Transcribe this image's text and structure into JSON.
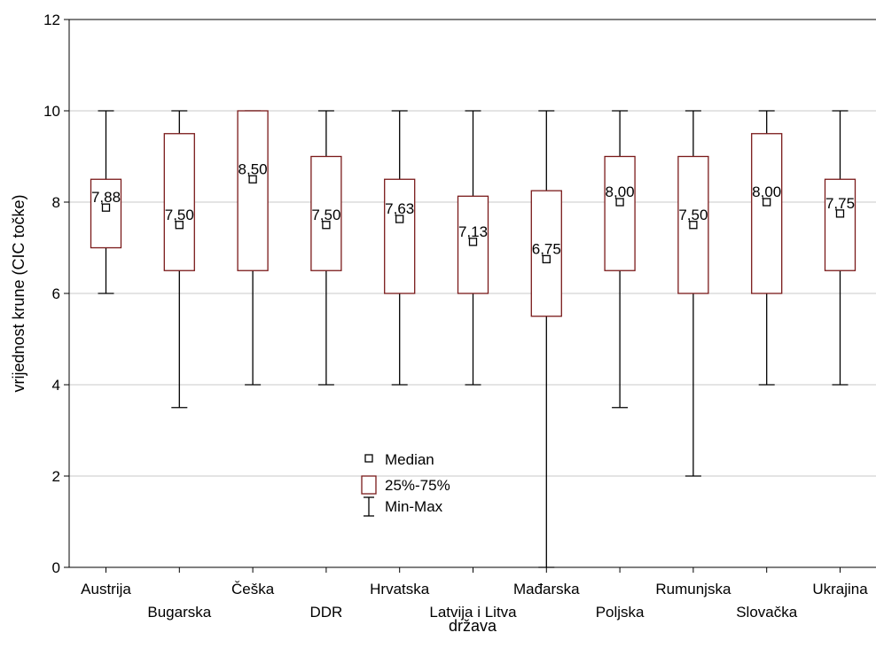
{
  "chart_data": {
    "type": "boxplot",
    "xlabel": "država",
    "ylabel": "vrijednost krune (CIC točke)",
    "ylim": [
      0,
      12
    ],
    "yticks": [
      0,
      2,
      4,
      6,
      8,
      10,
      12
    ],
    "grid": true,
    "legend_position": "center-bottom",
    "legend": [
      "Median",
      "25%-75%",
      "Min-Max"
    ],
    "colors": {
      "box": "#7a1a1a",
      "whisker": "#000000",
      "median_marker": "#000000",
      "grid": "#c8c8c8"
    },
    "categories": [
      "Austrija",
      "Bugarska",
      "Češka",
      "DDR",
      "Hrvatska",
      "Latvija i Litva",
      "Mađarska",
      "Poljska",
      "Rumunjska",
      "Slovačka",
      "Ukrajina"
    ],
    "median_labels": [
      "7,88",
      "7,50",
      "8,50",
      "7,50",
      "7,63",
      "7,13",
      "6,75",
      "8,00",
      "7,50",
      "8,00",
      "7,75"
    ],
    "series": [
      {
        "median": 7.88,
        "q1": 7.0,
        "q3": 8.5,
        "min": 6.0,
        "max": 10.0
      },
      {
        "median": 7.5,
        "q1": 6.5,
        "q3": 9.5,
        "min": 3.5,
        "max": 10.0
      },
      {
        "median": 8.5,
        "q1": 6.5,
        "q3": 10.0,
        "min": 4.0,
        "max": 10.0
      },
      {
        "median": 7.5,
        "q1": 6.5,
        "q3": 9.0,
        "min": 4.0,
        "max": 10.0
      },
      {
        "median": 7.63,
        "q1": 6.0,
        "q3": 8.5,
        "min": 4.0,
        "max": 10.0
      },
      {
        "median": 7.13,
        "q1": 6.0,
        "q3": 8.13,
        "min": 4.0,
        "max": 10.0
      },
      {
        "median": 6.75,
        "q1": 5.5,
        "q3": 8.25,
        "min": 0.0,
        "max": 10.0
      },
      {
        "median": 8.0,
        "q1": 6.5,
        "q3": 9.0,
        "min": 3.5,
        "max": 10.0
      },
      {
        "median": 7.5,
        "q1": 6.0,
        "q3": 9.0,
        "min": 2.0,
        "max": 10.0
      },
      {
        "median": 8.0,
        "q1": 6.0,
        "q3": 9.5,
        "min": 4.0,
        "max": 10.0
      },
      {
        "median": 7.75,
        "q1": 6.5,
        "q3": 8.5,
        "min": 4.0,
        "max": 10.0
      }
    ]
  }
}
